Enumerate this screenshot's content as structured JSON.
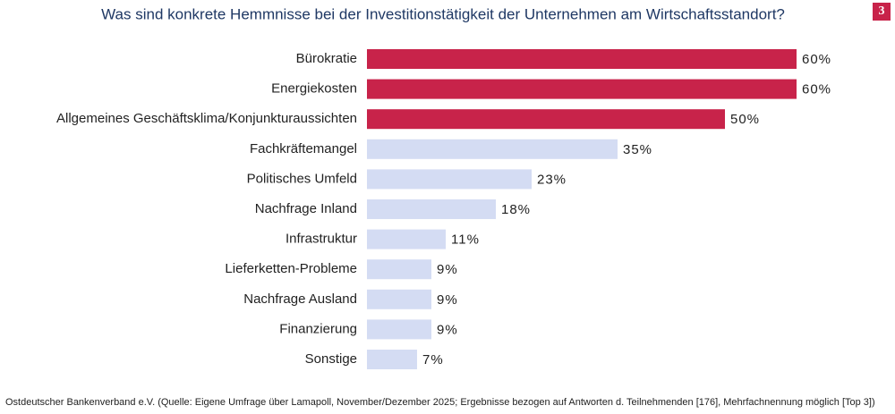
{
  "chart_data": {
    "type": "bar",
    "orientation": "horizontal",
    "title": "Was sind konkrete Hemmnisse bei der Investitionstätigkeit der Unternehmen am Wirtschaftsstandort?",
    "categories": [
      "Bürokratie",
      "Energiekosten",
      "Allgemeines Geschäftsklima/Konjunkturaussichten",
      "Fachkräftemangel",
      "Politisches Umfeld",
      "Nachfrage Inland",
      "Infrastruktur",
      "Lieferketten-Probleme",
      "Nachfrage Ausland",
      "Finanzierung",
      "Sonstige"
    ],
    "values": [
      60,
      60,
      50,
      35,
      23,
      18,
      11,
      9,
      9,
      9,
      7
    ],
    "value_labels": [
      "60%",
      "60%",
      "50%",
      "35%",
      "23%",
      "18%",
      "11%",
      "9%",
      "9%",
      "9%",
      "7%"
    ],
    "colors": [
      "#c8234a",
      "#c8234a",
      "#c8234a",
      "#d4dcf3",
      "#d4dcf3",
      "#d4dcf3",
      "#d4dcf3",
      "#d4dcf3",
      "#d4dcf3",
      "#d4dcf3",
      "#d4dcf3"
    ],
    "source": "Ostdeutscher Bankenverband e.V. (Quelle: Eigene Umfrage über Lamapoll, November/Dezember 2025; Ergebnisse bezogen auf Antworten d. Teilnehmenden [176], Mehrfachnennung möglich [Top 3])"
  },
  "page_number": "3"
}
